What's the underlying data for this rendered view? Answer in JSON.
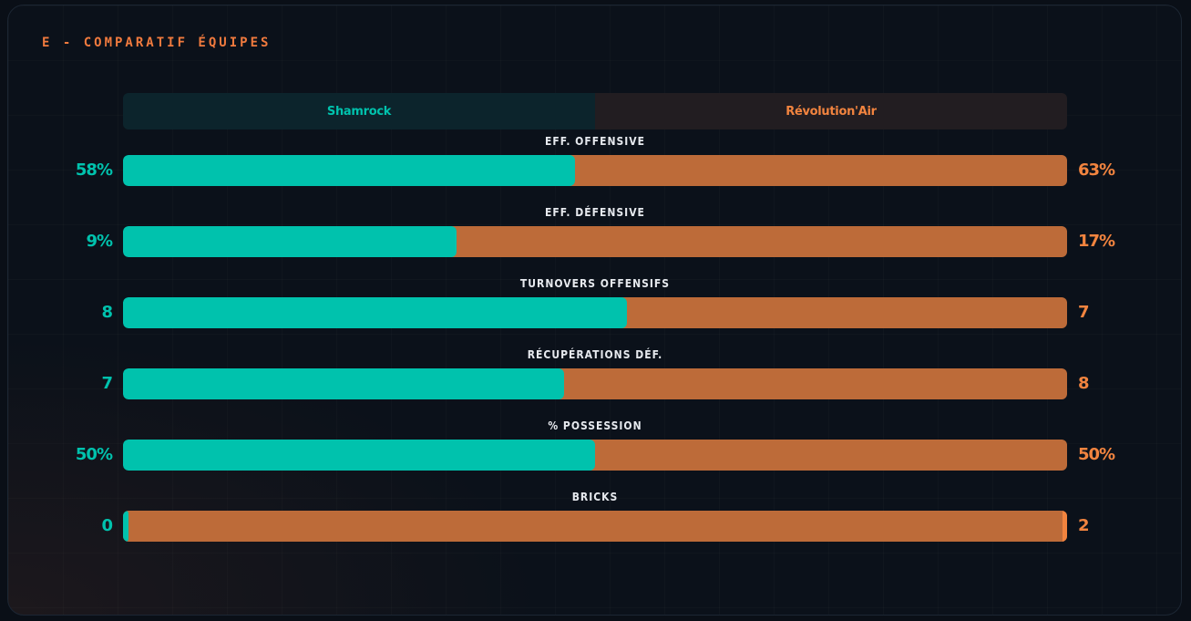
{
  "panel": {
    "title": "E - COMPARATIF ÉQUIPES"
  },
  "colors": {
    "team_a": "#00c2ad",
    "team_b": "#bd6b39",
    "team_b_text": "#f2843f",
    "team_b_edge": "#f2843f"
  },
  "teams": {
    "a": {
      "name": "Shamrock"
    },
    "b": {
      "name": "Révolution'Air"
    }
  },
  "chart_data": {
    "type": "bar",
    "orientation": "horizontal-stacked-comparison",
    "title": "E - COMPARATIF ÉQUIPES",
    "series": [
      {
        "name": "Shamrock"
      },
      {
        "name": "Révolution'Air"
      }
    ],
    "rows": [
      {
        "label": "EFF. OFFENSIVE",
        "left_text": "58%",
        "right_text": "63%",
        "left_share": 0.479
      },
      {
        "label": "EFF. DÉFENSIVE",
        "left_text": "9%",
        "right_text": "17%",
        "left_share": 0.353
      },
      {
        "label": "TURNOVERS OFFENSIFS",
        "left_text": "8",
        "right_text": "7",
        "left_share": 0.534
      },
      {
        "label": "RÉCUPÉRATIONS DÉF.",
        "left_text": "7",
        "right_text": "8",
        "left_share": 0.467
      },
      {
        "label": "% POSSESSION",
        "left_text": "50%",
        "right_text": "50%",
        "left_share": 0.5
      },
      {
        "label": "BRICKS",
        "left_text": "0",
        "right_text": "2",
        "left_share": 0.0,
        "min_segment": true
      }
    ]
  }
}
